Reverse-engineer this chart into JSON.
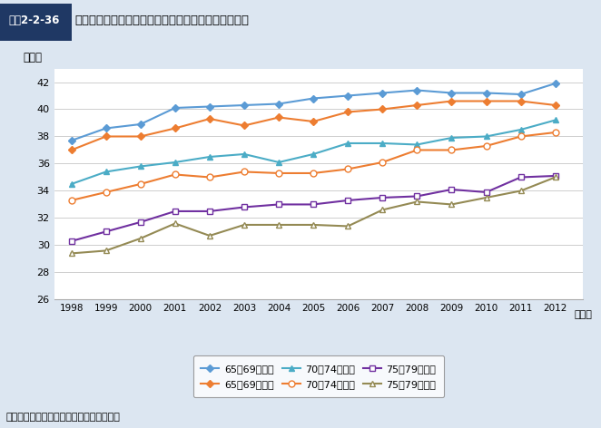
{
  "title_box": "図表2-2-36",
  "title_text": "体力テストの点数の年次推移（年齢階級別：高齢者）",
  "ylabel": "（点）",
  "xlabel_suffix": "（年）",
  "years": [
    1998,
    1999,
    2000,
    2001,
    2002,
    2003,
    2004,
    2005,
    2006,
    2007,
    2008,
    2009,
    2010,
    2011,
    2012
  ],
  "series": [
    {
      "label": "65～69歳男性",
      "color": "#5b9bd5",
      "marker": "D",
      "marker_filled": true,
      "values": [
        37.7,
        38.6,
        38.9,
        40.1,
        40.2,
        40.3,
        40.4,
        40.8,
        41.0,
        41.2,
        41.4,
        41.2,
        41.2,
        41.1,
        41.9
      ]
    },
    {
      "label": "65～69歳女性",
      "color": "#ed7d31",
      "marker": "D",
      "marker_filled": true,
      "values": [
        37.0,
        38.0,
        38.0,
        38.6,
        39.3,
        38.8,
        39.4,
        39.1,
        39.8,
        40.0,
        40.3,
        40.6,
        40.6,
        40.6,
        40.3
      ]
    },
    {
      "label": "70～74歳男性",
      "color": "#4bacc6",
      "marker": "^",
      "marker_filled": true,
      "values": [
        34.5,
        35.4,
        35.8,
        36.1,
        36.5,
        36.7,
        36.1,
        36.7,
        37.5,
        37.5,
        37.4,
        37.9,
        38.0,
        38.5,
        39.2
      ]
    },
    {
      "label": "70～74歳女性",
      "color": "#ed7d31",
      "marker": "o",
      "marker_filled": false,
      "values": [
        33.3,
        33.9,
        34.5,
        35.2,
        35.0,
        35.4,
        35.3,
        35.3,
        35.6,
        36.1,
        37.0,
        37.0,
        37.3,
        38.0,
        38.3
      ]
    },
    {
      "label": "75～79歳男性",
      "color": "#7030a0",
      "marker": "s",
      "marker_filled": false,
      "values": [
        30.3,
        31.0,
        31.7,
        32.5,
        32.5,
        32.8,
        33.0,
        33.0,
        33.3,
        33.5,
        33.6,
        34.1,
        33.9,
        35.0,
        35.1
      ]
    },
    {
      "label": "75～79歳女性",
      "color": "#948a54",
      "marker": "^",
      "marker_filled": false,
      "values": [
        29.4,
        29.6,
        30.5,
        31.6,
        30.7,
        31.5,
        31.5,
        31.5,
        31.4,
        32.6,
        33.2,
        33.0,
        33.5,
        34.0,
        35.0
      ]
    }
  ],
  "ylim": [
    26,
    43
  ],
  "yticks": [
    26,
    28,
    30,
    32,
    34,
    36,
    38,
    40,
    42
  ],
  "background_color": "#dce6f1",
  "plot_background_color": "#ffffff",
  "source_text": "資料：文部科学省「体力・運動能力調査」",
  "title_box_color": "#1f3864",
  "title_box_text_color": "#ffffff"
}
